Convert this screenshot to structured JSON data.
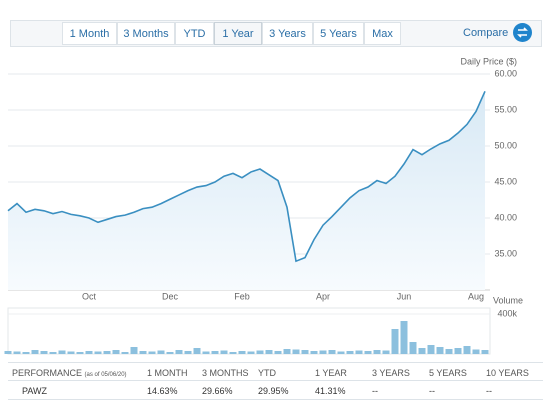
{
  "tabs": [
    "1 Month",
    "3 Months",
    "YTD",
    "1 Year",
    "3 Years",
    "5 Years",
    "Max"
  ],
  "active_tab": 3,
  "compare": "Compare",
  "chart_data": [
    {
      "type": "line",
      "title": "Daily Price ($)",
      "color": "#3a8fc1",
      "grid": true,
      "categories": [
        null,
        null,
        null,
        null,
        null,
        null,
        null,
        null,
        null,
        "Oct",
        null,
        null,
        null,
        null,
        null,
        null,
        null,
        null,
        "Dec",
        null,
        null,
        null,
        null,
        null,
        null,
        null,
        "Feb",
        null,
        null,
        null,
        null,
        null,
        null,
        null,
        null,
        "Apr",
        null,
        null,
        null,
        null,
        null,
        null,
        null,
        null,
        "Jun",
        null,
        null,
        null,
        null,
        null,
        null,
        null,
        "Aug",
        null
      ],
      "values": [
        41.0,
        42.0,
        40.8,
        41.2,
        41.0,
        40.6,
        40.9,
        40.5,
        40.3,
        40.0,
        39.4,
        39.8,
        40.2,
        40.4,
        40.8,
        41.3,
        41.5,
        42.0,
        42.6,
        43.2,
        43.8,
        44.3,
        44.5,
        45.0,
        45.8,
        46.2,
        45.6,
        46.4,
        46.8,
        46.0,
        45.2,
        41.5,
        34.0,
        34.5,
        37.0,
        39.0,
        40.2,
        41.5,
        42.8,
        43.8,
        44.3,
        45.2,
        44.8,
        45.8,
        47.5,
        49.5,
        48.8,
        49.6,
        50.3,
        50.8,
        51.8,
        53.0,
        54.8,
        57.6
      ],
      "ylim": [
        30,
        61
      ],
      "yticks": [
        {
          "value": 35,
          "label": "35.00"
        },
        {
          "value": 40,
          "label": "40.00"
        },
        {
          "value": 45,
          "label": "45.00"
        },
        {
          "value": 50,
          "label": "50.00"
        },
        {
          "value": 55,
          "label": "55.00"
        },
        {
          "value": 60,
          "label": "60.00"
        }
      ]
    },
    {
      "type": "bar",
      "title": "Volume",
      "color": "#8cc0de",
      "values": [
        30000,
        25000,
        20000,
        40000,
        30000,
        20000,
        35000,
        25000,
        20000,
        30000,
        25000,
        30000,
        40000,
        20000,
        70000,
        30000,
        25000,
        35000,
        20000,
        40000,
        30000,
        60000,
        25000,
        30000,
        35000,
        20000,
        30000,
        25000,
        35000,
        40000,
        30000,
        50000,
        45000,
        40000,
        30000,
        35000,
        40000,
        25000,
        30000,
        35000,
        30000,
        40000,
        35000,
        250000,
        330000,
        120000,
        60000,
        90000,
        70000,
        50000,
        60000,
        80000,
        45000,
        40000
      ],
      "ylim": [
        0,
        460000
      ],
      "yticks": [
        {
          "value": 400000,
          "label": "400k"
        }
      ]
    }
  ],
  "performance": {
    "title": "PERFORMANCE",
    "as_of": "(as of 05/06/20)",
    "columns": [
      "1 MONTH",
      "3 MONTHS",
      "YTD",
      "1 YEAR",
      "3 YEARS",
      "5 YEARS",
      "10 YEARS"
    ],
    "rows": [
      [
        "PAWZ",
        "14.63%",
        "29.66%",
        "29.95%",
        "41.31%",
        "--",
        "--",
        "--"
      ]
    ]
  }
}
